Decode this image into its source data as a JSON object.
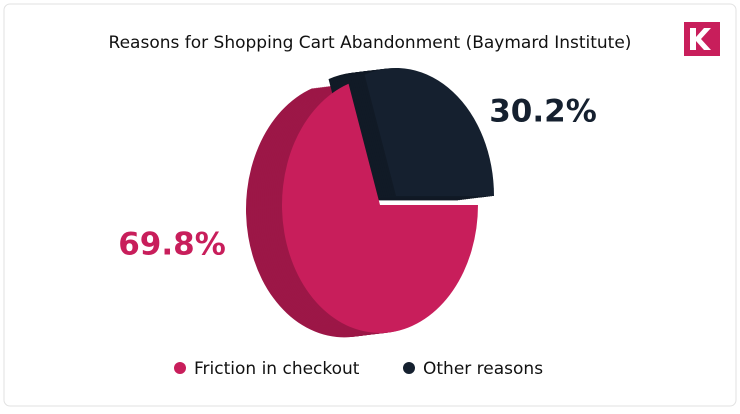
{
  "chart_data": {
    "type": "pie",
    "title": "Reasons for Shopping Cart Abandonment (Baymard Institute)",
    "categories": [
      "Friction in checkout",
      "Other reasons"
    ],
    "values": [
      69.8,
      30.2
    ],
    "value_labels": [
      "69.8%",
      "30.2%"
    ],
    "colors": [
      "#c81e5b",
      "#15202f"
    ]
  }
}
